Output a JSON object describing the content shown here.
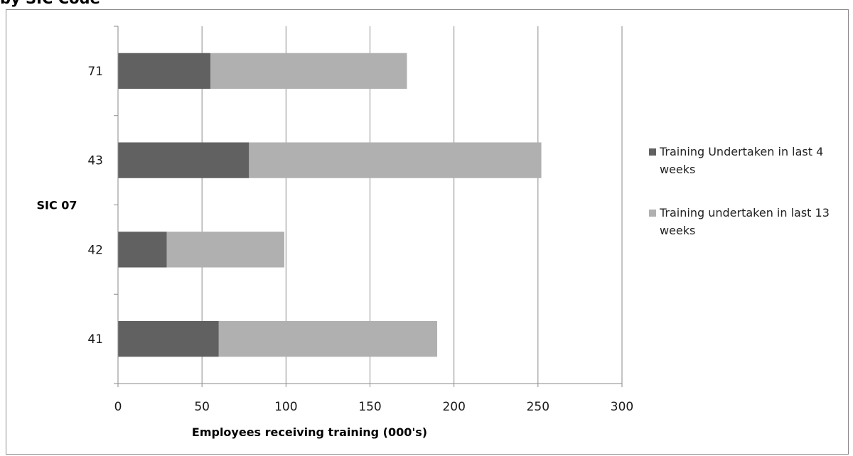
{
  "chart_data": {
    "type": "bar",
    "orientation": "horizontal",
    "stacked": true,
    "title": "by SIC Code",
    "categories": [
      "41",
      "42",
      "43",
      "71"
    ],
    "series": [
      {
        "name": "Training Undertaken in last 4 weeks",
        "values": [
          60,
          29,
          78,
          55
        ],
        "color": "#616161"
      },
      {
        "name": "Training undertaken in last 13 weeks",
        "values": [
          130,
          70,
          174,
          117
        ],
        "color": "#b0b0b0"
      }
    ],
    "xlabel": "Employees receiving training  (000's)",
    "ylabel": "SIC 07",
    "xlim": [
      0,
      300
    ],
    "xticks": [
      "0",
      "50",
      "100",
      "150",
      "200",
      "250",
      "300"
    ],
    "grid": "vertical",
    "legend_position": "right"
  }
}
